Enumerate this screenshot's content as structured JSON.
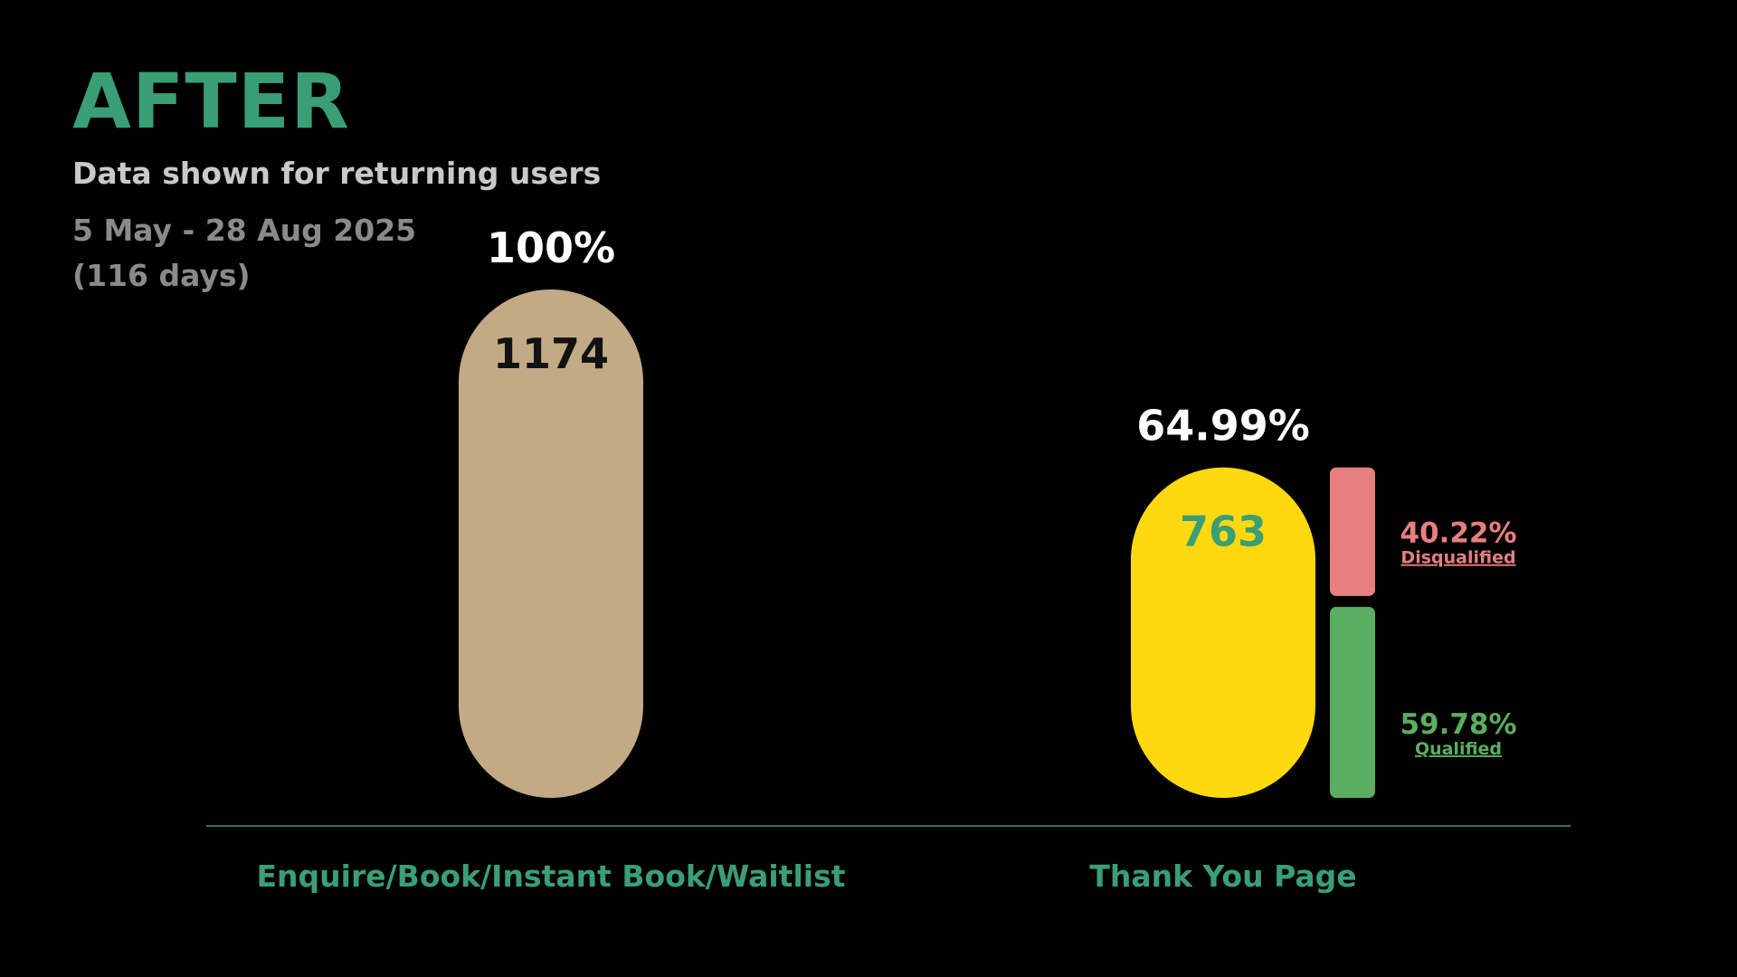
{
  "header": {
    "title": "AFTER",
    "subtitle": "Data shown for returning users",
    "date_range": "5 May - 28 Aug 2025",
    "days": "(116 days)"
  },
  "colors": {
    "title": "#3a9e76",
    "bar_1": "#c2aa86",
    "bar_2": "#ffd90f",
    "disqualified": "#e77f7f",
    "qualified": "#5bad5f",
    "axis": "#2e7a5a"
  },
  "chart_data": {
    "type": "bar",
    "categories": [
      "Enquire/Book/Instant Book/Waitlist",
      "Thank You Page"
    ],
    "values": [
      1174,
      763
    ],
    "value_labels": [
      "1174",
      "763"
    ],
    "percent_labels": [
      "100%",
      "64.99%"
    ],
    "breakdown": {
      "category": "Thank You Page",
      "segments": [
        {
          "name": "Disqualified",
          "percent": 40.22,
          "label": "40.22%"
        },
        {
          "name": "Qualified",
          "percent": 59.78,
          "label": "59.78%"
        }
      ]
    },
    "grid": false,
    "legend": "none"
  }
}
